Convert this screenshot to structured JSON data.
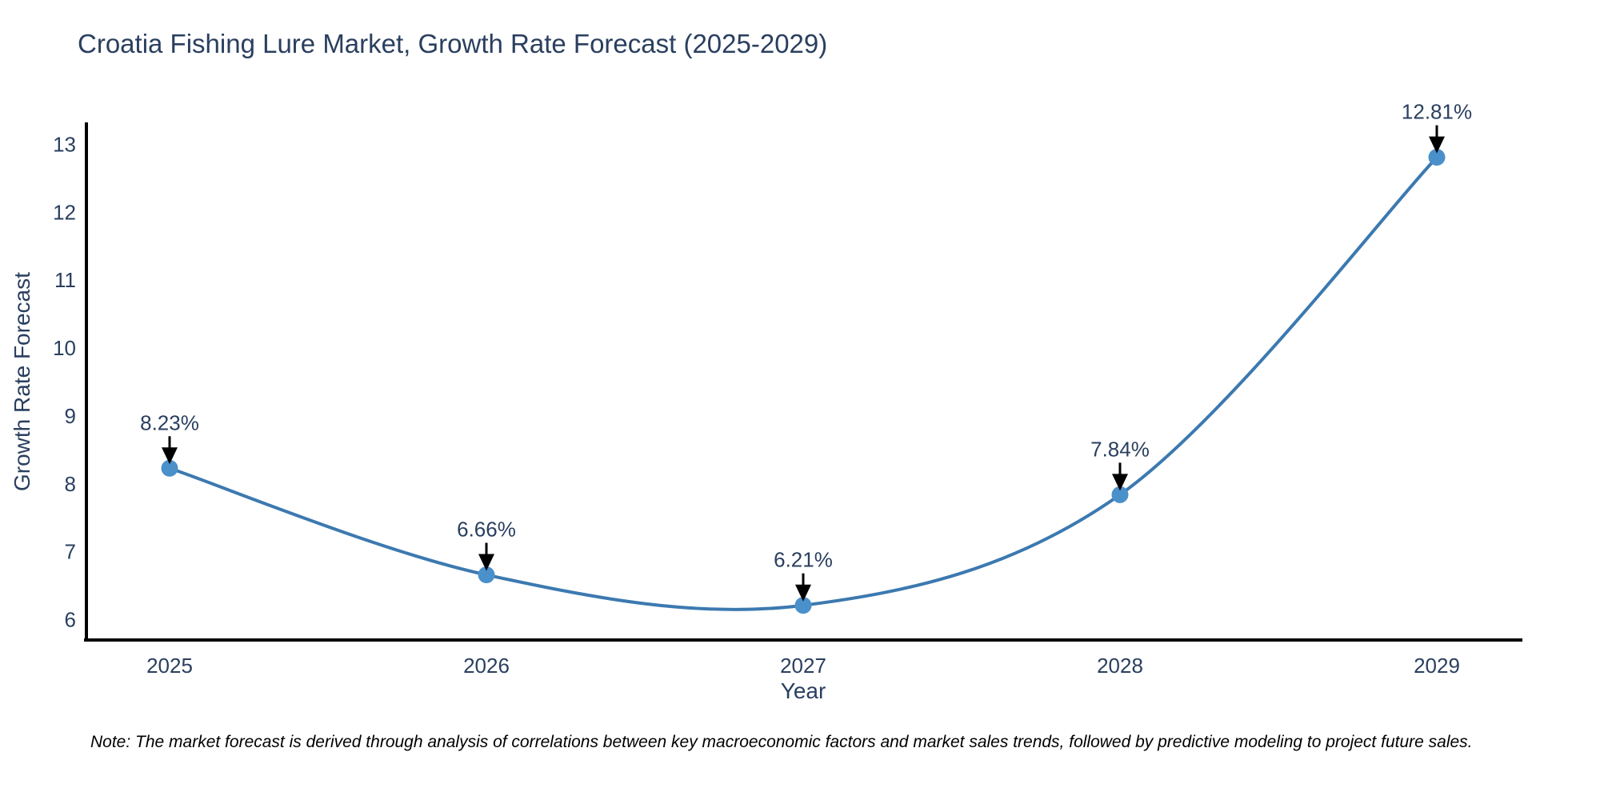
{
  "figure": {
    "note": "Note: The market forecast is derived through analysis of correlations between key macroeconomic factors and market sales trends, followed by predictive modeling to project future sales."
  },
  "colors": {
    "background": "#ffffff",
    "line": "#3c79b0",
    "marker": "#4a90cb",
    "axis": "#000000",
    "arrow": "#000000",
    "text": "#2a3f5f",
    "note_text": "#000000"
  },
  "chart_data": {
    "type": "line",
    "title": "Croatia Fishing Lure Market, Growth Rate Forecast (2025-2029)",
    "xlabel": "Year",
    "ylabel": "Growth Rate Forecast",
    "categories": [
      "2025",
      "2026",
      "2027",
      "2028",
      "2029"
    ],
    "values": [
      8.23,
      6.66,
      6.21,
      7.84,
      12.81
    ],
    "point_labels": [
      "8.23%",
      "6.66%",
      "6.21%",
      "7.84%",
      "12.81%"
    ],
    "yticks": [
      6,
      7,
      8,
      9,
      10,
      11,
      12,
      13
    ],
    "ylim": [
      5.7,
      13.3
    ],
    "line_shape": "spline",
    "grid": false,
    "legend_position": "none",
    "annotation_style": "label-with-arrow-down-to-point"
  }
}
